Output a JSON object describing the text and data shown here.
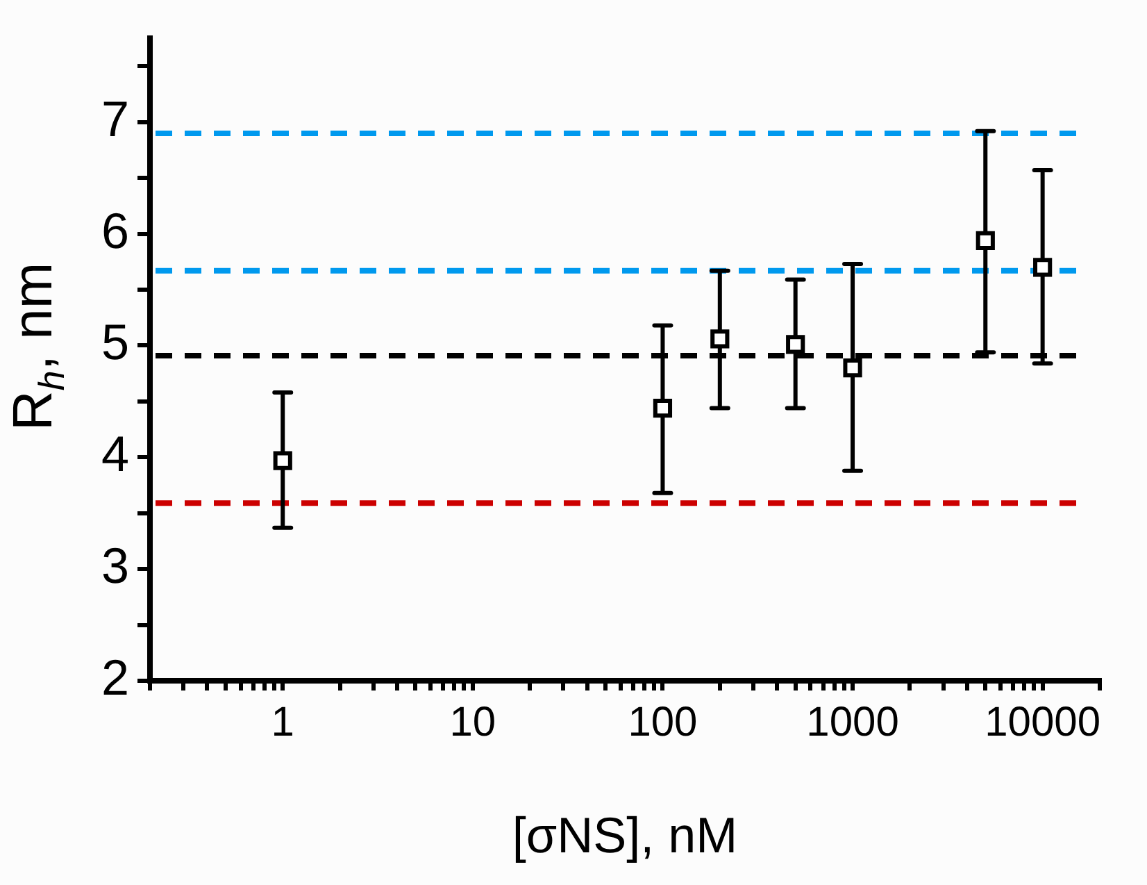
{
  "chart_data": {
    "type": "scatter",
    "xlabel": "[σNS], nM",
    "ylabel": "R$_{h}$, nm",
    "log": "x",
    "grid": false,
    "legend": false,
    "marker": "square",
    "xlim": [
      0.2,
      20000
    ],
    "ylim": [
      2,
      7.75
    ],
    "xticks": [
      {
        "value": 0.2,
        "label": null
      },
      {
        "value": 0.3,
        "label": null
      },
      {
        "value": 0.4,
        "label": null
      },
      {
        "value": 0.5,
        "label": null
      },
      {
        "value": 0.6,
        "label": null
      },
      {
        "value": 0.7,
        "label": null
      },
      {
        "value": 0.8,
        "label": null
      },
      {
        "value": 0.9,
        "label": null
      },
      1,
      {
        "value": 2,
        "label": null
      },
      {
        "value": 3,
        "label": null
      },
      {
        "value": 4,
        "label": null
      },
      {
        "value": 5,
        "label": null
      },
      {
        "value": 6,
        "label": null
      },
      {
        "value": 7,
        "label": null
      },
      {
        "value": 8,
        "label": null
      },
      {
        "value": 9,
        "label": null
      },
      10,
      {
        "value": 20,
        "label": null
      },
      {
        "value": 30,
        "label": null
      },
      {
        "value": 40,
        "label": null
      },
      {
        "value": 50,
        "label": null
      },
      {
        "value": 60,
        "label": null
      },
      {
        "value": 70,
        "label": null
      },
      {
        "value": 80,
        "label": null
      },
      {
        "value": 90,
        "label": null
      },
      100,
      {
        "value": 200,
        "label": null
      },
      {
        "value": 300,
        "label": null
      },
      {
        "value": 400,
        "label": null
      },
      {
        "value": 500,
        "label": null
      },
      {
        "value": 600,
        "label": null
      },
      {
        "value": 700,
        "label": null
      },
      {
        "value": 800,
        "label": null
      },
      {
        "value": 900,
        "label": null
      },
      1000,
      {
        "value": 2000,
        "label": null
      },
      {
        "value": 3000,
        "label": null
      },
      {
        "value": 4000,
        "label": null
      },
      {
        "value": 5000,
        "label": null
      },
      {
        "value": 6000,
        "label": null
      },
      {
        "value": 7000,
        "label": null
      },
      {
        "value": 8000,
        "label": null
      },
      {
        "value": 9000,
        "label": null
      },
      10000,
      {
        "value": 20000,
        "label": null
      }
    ],
    "yticks": [
      2,
      {
        "value": 2.5,
        "label": null
      },
      3,
      {
        "value": 3.5,
        "label": null
      },
      4,
      {
        "value": 4.5,
        "label": null
      },
      5,
      {
        "value": 5.5,
        "label": null
      },
      6,
      {
        "value": 6.5,
        "label": null
      },
      7,
      {
        "value": 7.5,
        "label": null
      }
    ],
    "series": [
      {
        "color": "#000000",
        "x": [
          1,
          100,
          200,
          500,
          1000,
          5000,
          10000
        ],
        "values": [
          3.97,
          4.44,
          5.06,
          5.01,
          4.8,
          5.94,
          5.7
        ],
        "errors": [
          [
            3.37,
            4.58
          ],
          [
            3.68,
            5.18
          ],
          [
            4.44,
            5.67
          ],
          [
            4.44,
            5.59
          ],
          [
            3.88,
            5.73
          ],
          [
            4.94,
            6.92
          ],
          [
            4.84,
            6.57
          ]
        ]
      }
    ],
    "ref_lines": [
      {
        "axis": "y",
        "value": 6.9,
        "color": "#0099ee",
        "line_style": "dashed"
      },
      {
        "axis": "y",
        "value": 5.67,
        "color": "#0099ee",
        "line_style": "dashed"
      },
      {
        "axis": "y",
        "value": 4.91,
        "color": "#000000",
        "line_style": "dashed"
      },
      {
        "axis": "y",
        "value": 3.59,
        "color": "#cc0000",
        "line_style": "dashed"
      }
    ]
  }
}
